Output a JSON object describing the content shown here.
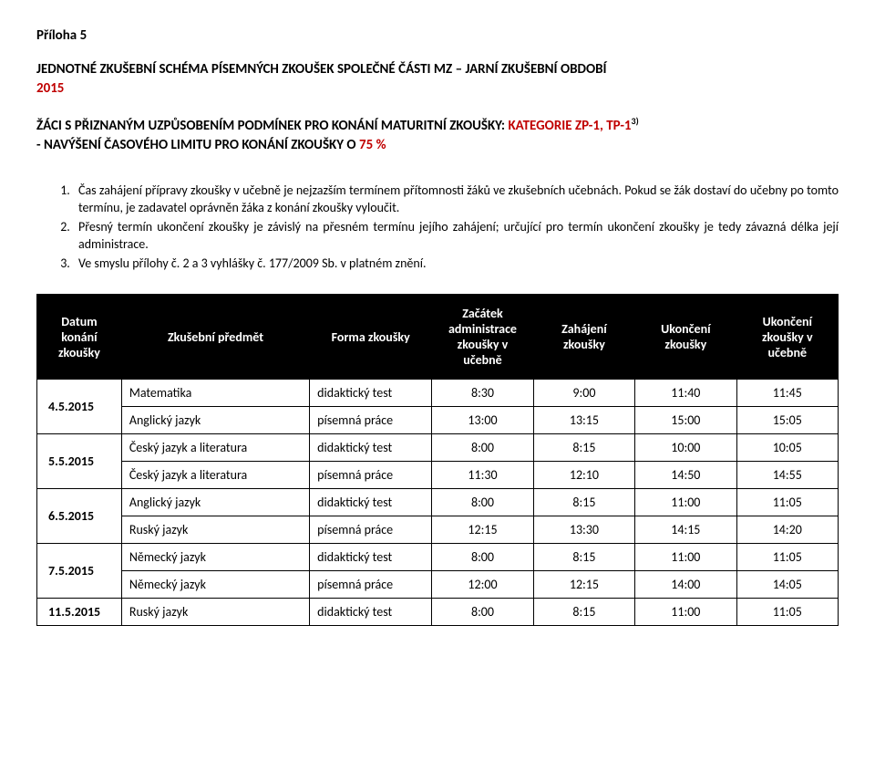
{
  "attachment": "Příloha 5",
  "title_line1": "JEDNOTNÉ ZKUŠEBNÍ SCHÉMA PÍSEMNÝCH ZKOUŠEK SPOLEČNÉ ČÁSTI MZ – JARNÍ ZKUŠEBNÍ OBDOBÍ",
  "title_year": "2015",
  "subtitle_a": "ŽÁCI S PŘIZNANÝM UZPŮSOBENÍM PODMÍNEK PRO KONÁNÍ MATURITNÍ ZKOUŠKY: ",
  "subtitle_cat": "KATEGORIE ZP-1, TP-1",
  "subtitle_sup": "3)",
  "subtitle_b_prefix": "- NAVÝŠENÍ ČASOVÉHO LIMITU PRO KONÁNÍ ZKOUŠKY O ",
  "subtitle_b_pct": "75 %",
  "notes": [
    "Čas zahájení přípravy zkoušky v učebně je nejzazším termínem přítomnosti žáků ve zkušebních učebnách. Pokud se žák dostaví do učebny po tomto termínu, je zadavatel oprávněn žáka z konání zkoušky vyloučit.",
    "Přesný termín ukončení zkoušky je závislý na přesném termínu jejího zahájení; určující pro termín ukončení zkoušky je tedy závazná délka její administrace.",
    "Ve smyslu přílohy č. 2 a 3 vyhlášky č. 177/2009 Sb. v platném znění."
  ],
  "headers": {
    "date": "Datum konání zkoušky",
    "subject": "Zkušební předmět",
    "form": "Forma zkoušky",
    "start_admin": "Začátek administrace zkoušky v učebně",
    "start": "Zahájení zkoušky",
    "end": "Ukončení zkoušky",
    "end_room": "Ukončení zkoušky v učebně"
  },
  "groups": [
    {
      "date": "4.5.2015",
      "rows": [
        {
          "subject": "Matematika",
          "form": "didaktický test",
          "t1": "8:30",
          "t2": "9:00",
          "t3": "11:40",
          "t4": "11:45"
        },
        {
          "subject": "Anglický jazyk",
          "form": "písemná práce",
          "t1": "13:00",
          "t2": "13:15",
          "t3": "15:00",
          "t4": "15:05"
        }
      ]
    },
    {
      "date": "5.5.2015",
      "rows": [
        {
          "subject": "Český jazyk a literatura",
          "form": "didaktický test",
          "t1": "8:00",
          "t2": "8:15",
          "t3": "10:00",
          "t4": "10:05"
        },
        {
          "subject": "Český jazyk a literatura",
          "form": "písemná práce",
          "t1": "11:30",
          "t2": "12:10",
          "t3": "14:50",
          "t4": "14:55"
        }
      ]
    },
    {
      "date": "6.5.2015",
      "rows": [
        {
          "subject": "Anglický jazyk",
          "form": "didaktický test",
          "t1": "8:00",
          "t2": "8:15",
          "t3": "11:00",
          "t4": "11:05"
        },
        {
          "subject": "Ruský jazyk",
          "form": "písemná práce",
          "t1": "12:15",
          "t2": "13:30",
          "t3": "14:15",
          "t4": "14:20"
        }
      ]
    },
    {
      "date": "7.5.2015",
      "rows": [
        {
          "subject": "Německý jazyk",
          "form": "didaktický test",
          "t1": "8:00",
          "t2": "8:15",
          "t3": "11:00",
          "t4": "11:05"
        },
        {
          "subject": "Německý jazyk",
          "form": "písemná práce",
          "t1": "12:00",
          "t2": "12:15",
          "t3": "14:00",
          "t4": "14:05"
        }
      ]
    },
    {
      "date": "11.5.2015",
      "rows": [
        {
          "subject": "Ruský jazyk",
          "form": "didaktický test",
          "t1": "8:00",
          "t2": "8:15",
          "t3": "11:00",
          "t4": "11:05"
        }
      ]
    }
  ]
}
